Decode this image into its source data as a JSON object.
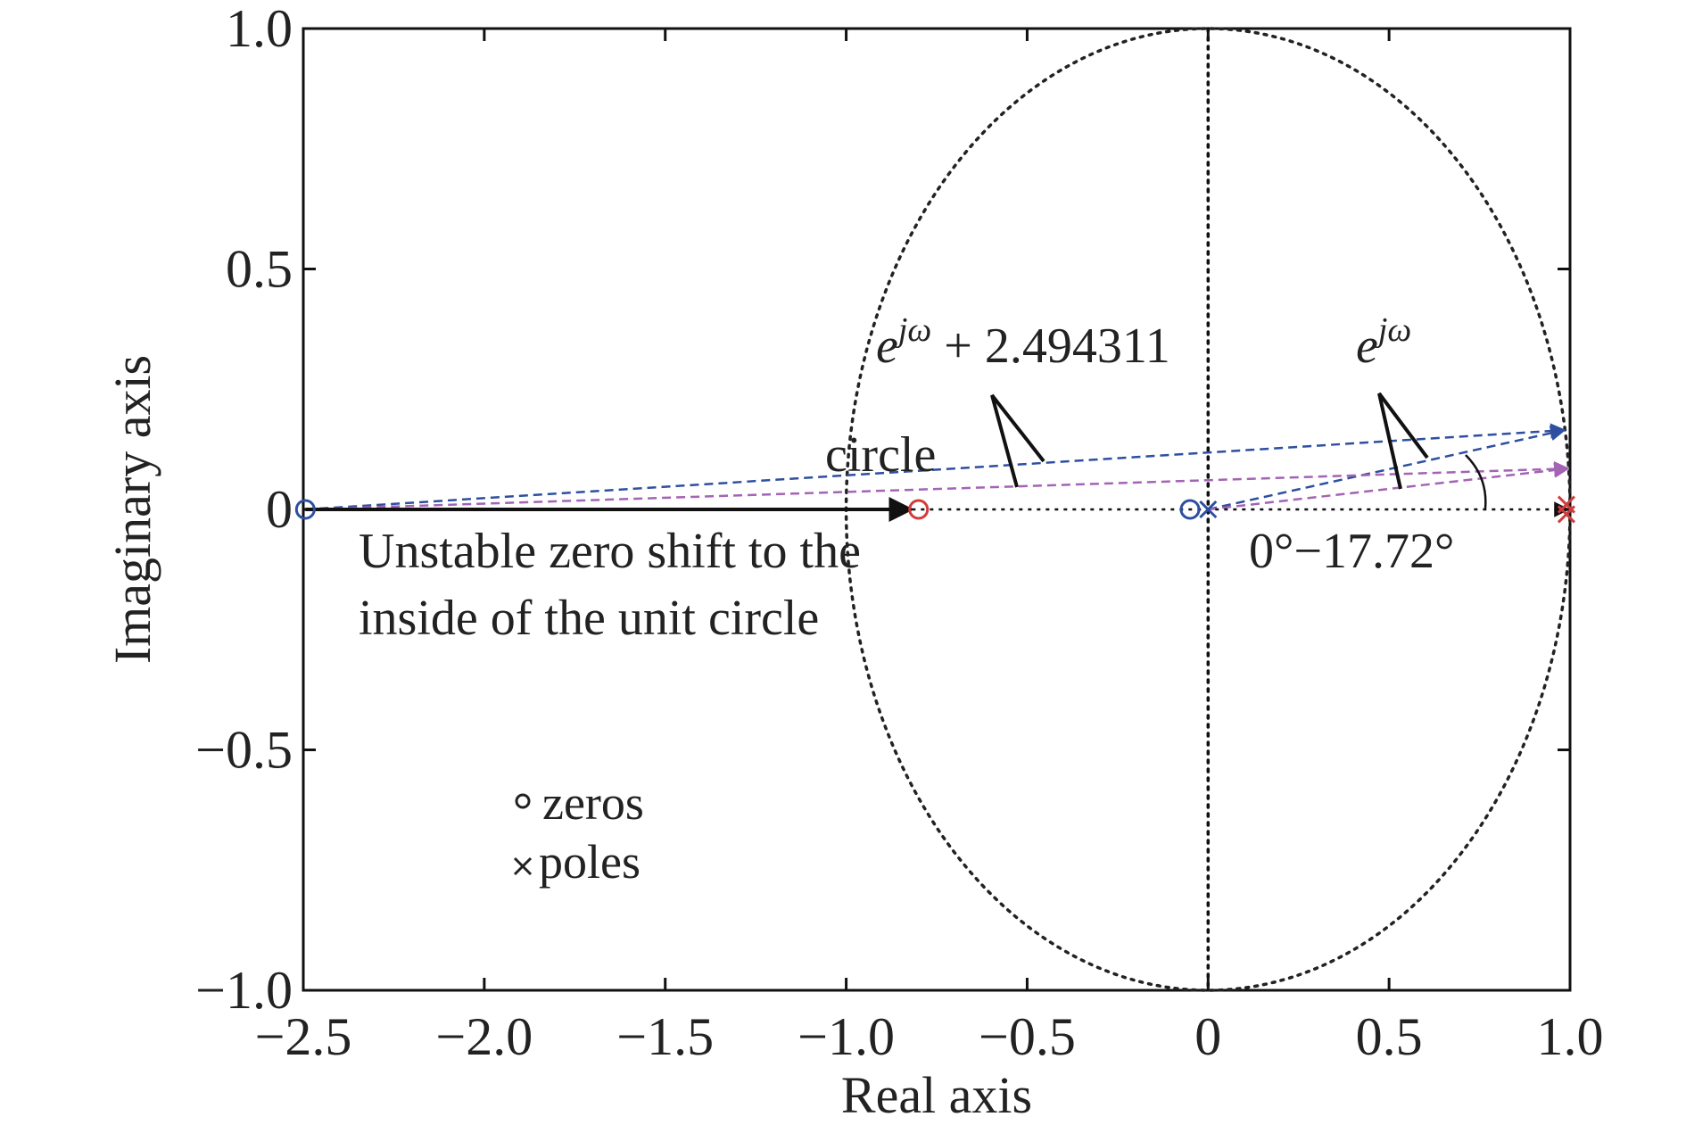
{
  "chart_data": {
    "type": "scatter",
    "title": "",
    "xlabel": "Real axis",
    "ylabel": "Imaginary axis",
    "xlim": [
      -2.5,
      1.0
    ],
    "ylim": [
      -1.0,
      1.0
    ],
    "xticks": [
      -2.5,
      -2.0,
      -1.5,
      -1.0,
      -0.5,
      0,
      0.5,
      1.0
    ],
    "xtick_labels": [
      "−2.5",
      "−2.0",
      "−1.5",
      "−1.0",
      "−0.5",
      "0",
      "0.5",
      "1.0"
    ],
    "yticks": [
      -1.0,
      -0.5,
      0,
      0.5,
      1.0
    ],
    "ytick_labels": [
      "−1.0",
      "−0.5",
      "0",
      "0.5",
      "1.0"
    ],
    "grid": false,
    "unit_circle": {
      "center": [
        0,
        0
      ],
      "radius": 1,
      "style": "dotted",
      "color": "#222222"
    },
    "imag_axis_line": {
      "x": 0,
      "style": "dotted"
    },
    "zeros": [
      {
        "x": -2.494311,
        "y": 0,
        "color": "#2e4fa0"
      },
      {
        "x": -0.05,
        "y": 0,
        "color": "#2e4fa0"
      },
      {
        "x": -0.8,
        "y": 0,
        "color": "#d33a3a"
      }
    ],
    "poles": [
      {
        "x": 0,
        "y": 0,
        "color": "#2e4fa0"
      },
      {
        "x": 0.99,
        "y": 0.01,
        "color": "#d33a3a"
      },
      {
        "x": 0.99,
        "y": -0.01,
        "color": "#d33a3a"
      }
    ],
    "vectors": [
      {
        "from": [
          -2.494311,
          0
        ],
        "to": [
          0.985,
          0.165
        ],
        "color": "#2e4fa0",
        "style": "dashed"
      },
      {
        "from": [
          0,
          0
        ],
        "to": [
          0.985,
          0.165
        ],
        "color": "#2e4fa0",
        "style": "dashed"
      },
      {
        "from": [
          -2.494311,
          0
        ],
        "to": [
          0.995,
          0.085
        ],
        "color": "#a463b5",
        "style": "dashed"
      },
      {
        "from": [
          0,
          0
        ],
        "to": [
          0.995,
          0.085
        ],
        "color": "#a463b5",
        "style": "dashed"
      },
      {
        "from": [
          -2.494311,
          0
        ],
        "to": [
          0.995,
          0
        ],
        "color": "#111111",
        "style": "dotted"
      },
      {
        "from": [
          -2.494311,
          0
        ],
        "to": [
          -0.82,
          0
        ],
        "color": "#111111",
        "style": "solid"
      }
    ],
    "annotations": {
      "vec_label_main": "e",
      "vec_label_sup": "jω",
      "vec_label_rest": " + 2.494311",
      "unit_vec_main": "e",
      "unit_vec_sup": "jω",
      "circle_label": "circle",
      "angle_label": "0°−17.72°",
      "unstable_line1": "Unstable zero shift to the",
      "unstable_line2": "inside of the unit circle"
    },
    "legend": {
      "position": "lower-left",
      "zeros_label": "zeros",
      "poles_label": "poles"
    }
  }
}
